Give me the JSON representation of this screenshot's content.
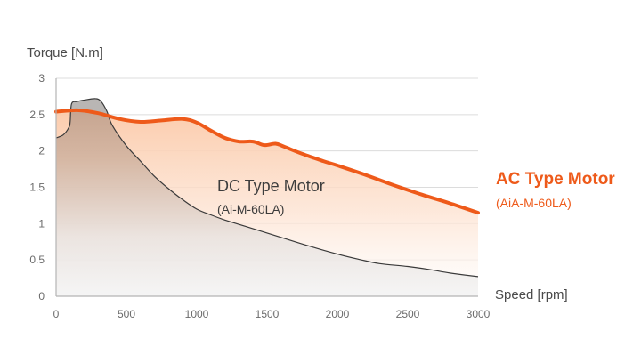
{
  "chart_data": {
    "type": "area",
    "title": "",
    "xlabel": "Speed [rpm]",
    "ylabel": "Torque [N.m]",
    "xlim": [
      0,
      3000
    ],
    "ylim": [
      0,
      3
    ],
    "grid": true,
    "x_ticks": [
      "0",
      "500",
      "1000",
      "1500",
      "2000",
      "2500",
      "3000"
    ],
    "x_tick_values": [
      0,
      500,
      1000,
      1500,
      2000,
      2500,
      3000
    ],
    "y_ticks": [
      "0",
      "0.5",
      "1",
      "1.5",
      "2",
      "2.5",
      "3"
    ],
    "y_tick_values": [
      0,
      0.5,
      1,
      1.5,
      2,
      2.5,
      3
    ],
    "series": [
      {
        "name": "DC Type Motor",
        "subtitle": "(Ai-M-60LA)",
        "color": "#3a3a3a",
        "x": [
          0,
          50,
          90,
          100,
          110,
          150,
          200,
          280,
          320,
          360,
          400,
          500,
          600,
          700,
          800,
          900,
          1000,
          1100,
          1200,
          1350,
          1500,
          1650,
          1800,
          2000,
          2150,
          2300,
          2500,
          2650,
          2800,
          3000
        ],
        "y": [
          2.18,
          2.22,
          2.32,
          2.4,
          2.65,
          2.68,
          2.7,
          2.72,
          2.68,
          2.55,
          2.35,
          2.07,
          1.86,
          1.65,
          1.48,
          1.33,
          1.2,
          1.12,
          1.05,
          0.96,
          0.87,
          0.78,
          0.69,
          0.58,
          0.51,
          0.45,
          0.41,
          0.37,
          0.32,
          0.27
        ]
      },
      {
        "name": "AC Type Motor",
        "subtitle": "(AiA-M-60LA)",
        "color": "#ee5a1a",
        "x": [
          0,
          150,
          300,
          450,
          600,
          750,
          900,
          1000,
          1100,
          1200,
          1300,
          1400,
          1480,
          1560,
          1620,
          1750,
          1900,
          2000,
          2200,
          2400,
          2600,
          2800,
          3000
        ],
        "y": [
          2.54,
          2.56,
          2.52,
          2.44,
          2.4,
          2.42,
          2.44,
          2.39,
          2.28,
          2.18,
          2.13,
          2.13,
          2.08,
          2.1,
          2.06,
          1.96,
          1.86,
          1.8,
          1.67,
          1.53,
          1.4,
          1.28,
          1.15
        ]
      }
    ]
  }
}
